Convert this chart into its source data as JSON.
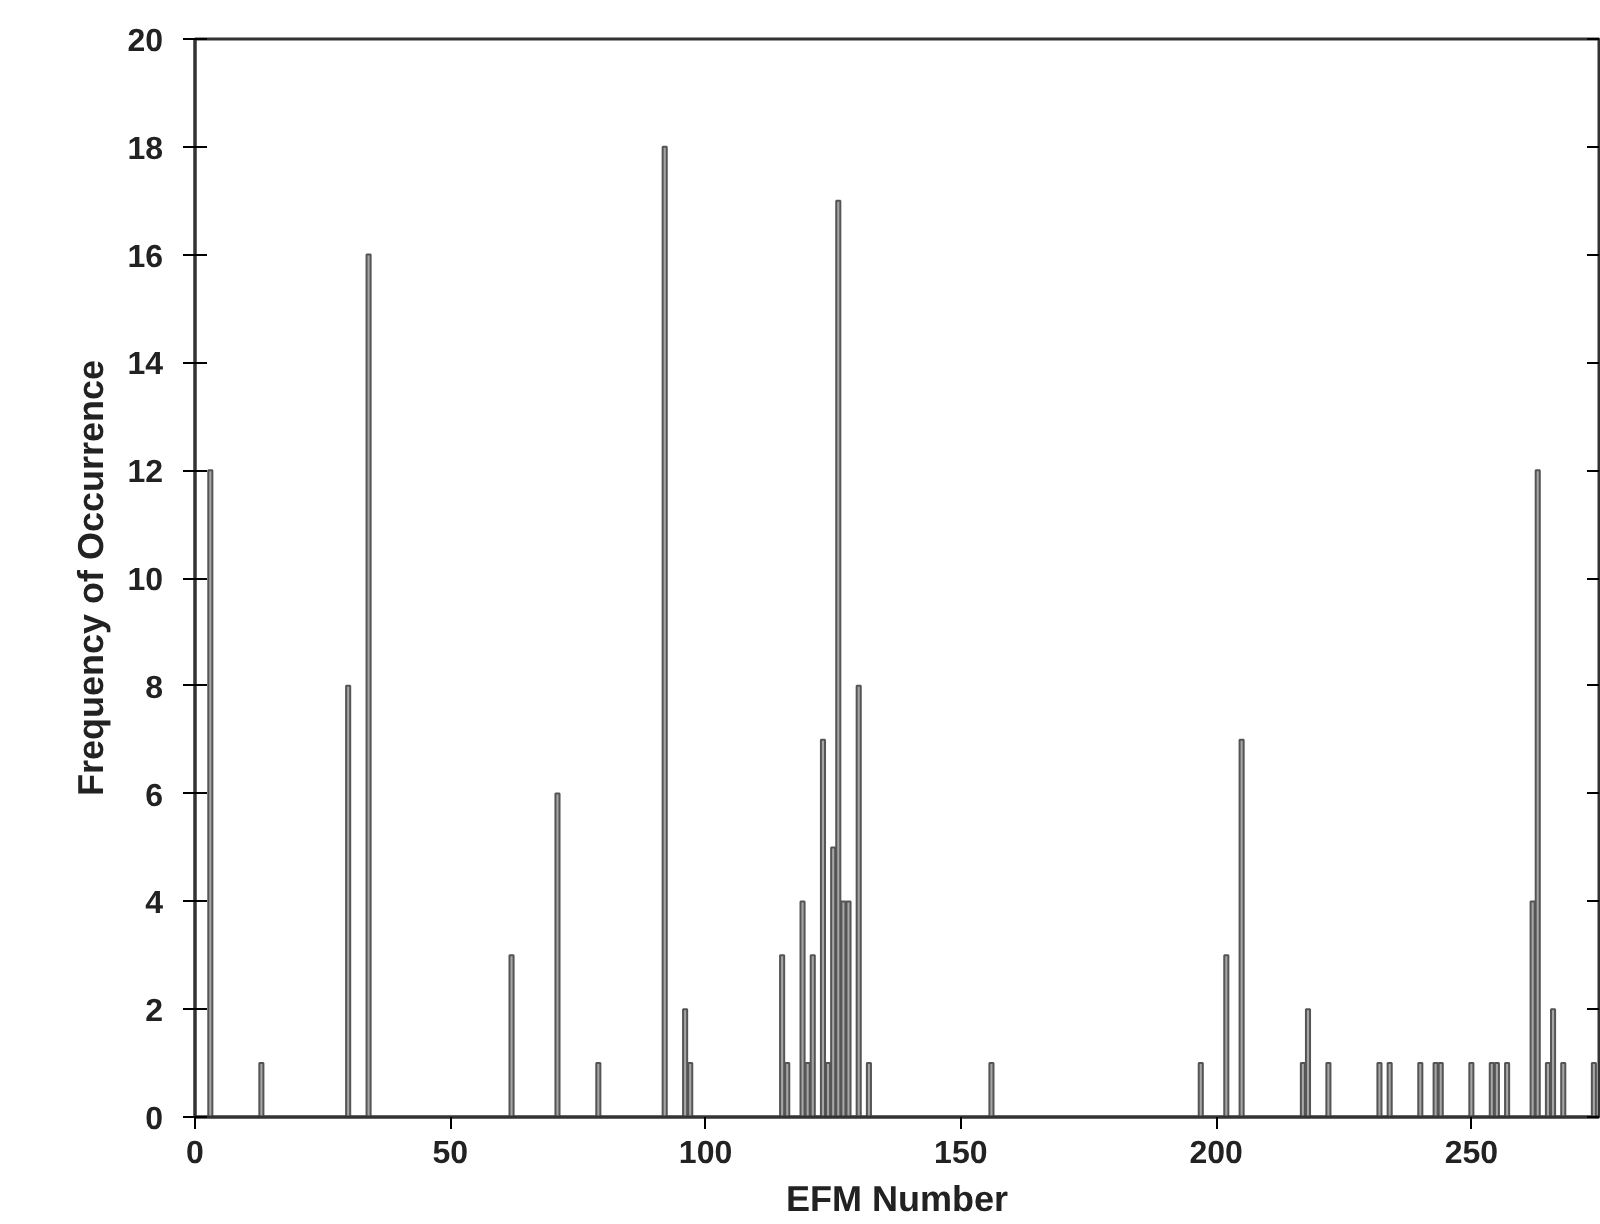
{
  "chart_data": {
    "type": "bar",
    "xlabel": "EFM Number",
    "ylabel": "Frequency of Occurrence",
    "x": [
      3,
      13,
      30,
      34,
      62,
      71,
      79,
      92,
      96,
      97,
      115,
      116,
      119,
      120,
      121,
      123,
      124,
      125,
      126,
      127,
      128,
      130,
      132,
      156,
      197,
      202,
      205,
      217,
      218,
      222,
      232,
      234,
      240,
      243,
      244,
      250,
      254,
      255,
      257,
      262,
      263,
      265,
      266,
      268,
      274
    ],
    "values": [
      12,
      1,
      8,
      16,
      3,
      6,
      1,
      18,
      2,
      1,
      3,
      1,
      4,
      1,
      3,
      7,
      1,
      5,
      17,
      4,
      4,
      8,
      1,
      1,
      1,
      3,
      7,
      1,
      2,
      1,
      1,
      1,
      1,
      1,
      1,
      1,
      1,
      1,
      1,
      4,
      12,
      1,
      2,
      1,
      1
    ],
    "color": "#a6a6a6",
    "xlim": [
      0,
      275
    ],
    "xticks": [
      0,
      50,
      100,
      150,
      200,
      250
    ],
    "ylim": [
      0,
      20
    ],
    "yticks": [
      0,
      2,
      4,
      6,
      8,
      10,
      12,
      14,
      16,
      18,
      20
    ],
    "grid": false
  }
}
